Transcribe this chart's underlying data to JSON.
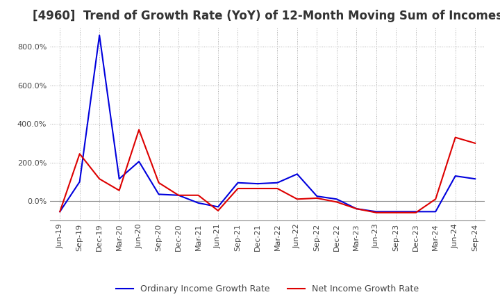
{
  "title": "[4960]  Trend of Growth Rate (YoY) of 12-Month Moving Sum of Incomes",
  "title_fontsize": 12,
  "background_color": "#ffffff",
  "plot_background": "#ffffff",
  "grid_color": "#aaaaaa",
  "line_color_ordinary": "#0000dd",
  "line_color_net": "#dd0000",
  "legend_ordinary": "Ordinary Income Growth Rate",
  "legend_net": "Net Income Growth Rate",
  "x_labels": [
    "Jun-19",
    "Sep-19",
    "Dec-19",
    "Mar-20",
    "Jun-20",
    "Sep-20",
    "Dec-20",
    "Mar-21",
    "Jun-21",
    "Sep-21",
    "Dec-21",
    "Mar-22",
    "Jun-22",
    "Sep-22",
    "Dec-22",
    "Mar-23",
    "Jun-23",
    "Sep-23",
    "Dec-23",
    "Mar-24",
    "Jun-24",
    "Sep-24"
  ],
  "ordinary_income": [
    -55,
    100,
    860,
    115,
    205,
    35,
    30,
    -10,
    -30,
    95,
    90,
    95,
    140,
    25,
    10,
    -40,
    -55,
    -55,
    -55,
    -55,
    130,
    115
  ],
  "net_income": [
    -55,
    245,
    115,
    55,
    370,
    95,
    30,
    30,
    -50,
    65,
    65,
    65,
    10,
    15,
    -5,
    -40,
    -60,
    -60,
    -60,
    10,
    330,
    300
  ],
  "ylim_min": -100,
  "ylim_max": 900,
  "yticks": [
    0,
    200,
    400,
    600,
    800
  ]
}
